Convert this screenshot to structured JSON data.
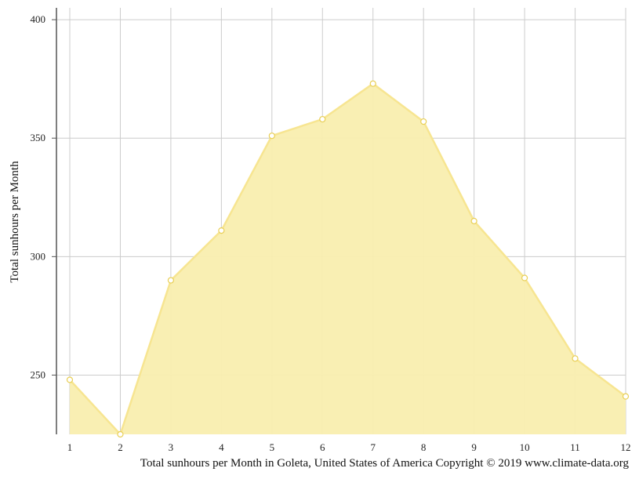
{
  "chart_data": {
    "type": "area",
    "title": "",
    "xlabel": "",
    "ylabel": "Total sunhours per Month",
    "x": [
      "1",
      "2",
      "3",
      "4",
      "5",
      "6",
      "7",
      "8",
      "9",
      "10",
      "11",
      "12"
    ],
    "series": [
      {
        "values": [
          248,
          225,
          290,
          311,
          351,
          358,
          373,
          357,
          315,
          291,
          257,
          241
        ]
      }
    ],
    "ylim": [
      225,
      405
    ],
    "yticks": [
      "250",
      "300",
      "350",
      "400"
    ],
    "grid": true,
    "legend": "none",
    "colors": {
      "fill": "#f9eeaf",
      "line": "#f7e591",
      "point_fill": "#ffffff",
      "grid": "#cccccc",
      "axis": "#555555"
    }
  },
  "caption": "Total sunhours per Month in Goleta, United States of America Copyright © 2019 www.climate-data.org"
}
